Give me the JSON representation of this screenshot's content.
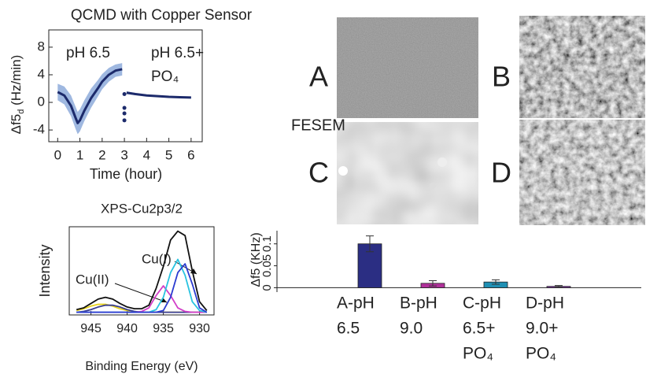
{
  "chart_data": [
    {
      "type": "line",
      "title": "QCMD with Copper Sensor",
      "y_label": [
        "Δf5",
        "d",
        " (Hz/min)"
      ],
      "x_label": "Time (hour)",
      "xlim": [
        -0.4,
        6.5
      ],
      "xticks": [
        0,
        1,
        2,
        3,
        4,
        5,
        6
      ],
      "ylim": [
        -5.7,
        10.5
      ],
      "yticks": [
        -4,
        0,
        4,
        8
      ],
      "annotations": [
        {
          "text": "pH 6.5",
          "color": "#2b2e83"
        },
        {
          "text": "pH 6.5+",
          "color": "#1f8fb3"
        },
        {
          "text": "PO₄",
          "color": "#1f8fb3"
        }
      ],
      "series": [
        {
          "color": "#1c2a6b",
          "band_color": "#9fb8e0",
          "x": [
            0,
            0.3,
            0.6,
            0.8,
            0.9,
            1.0,
            1.2,
            1.5,
            1.8,
            2.0,
            2.3,
            2.6,
            2.9,
            3.0,
            3.1,
            3.5,
            4.0,
            4.5,
            5.0,
            5.5,
            6.0
          ],
          "values": [
            1.5,
            1.0,
            -0.5,
            -2.2,
            -3.0,
            -2.6,
            -1.2,
            0.6,
            2.0,
            3.0,
            4.0,
            4.6,
            4.8,
            null,
            1.4,
            1.2,
            1.0,
            0.9,
            0.8,
            0.75,
            0.7
          ],
          "errors": [
            1.2,
            1.3,
            1.5,
            1.6,
            1.6,
            1.6,
            1.5,
            1.4,
            1.2,
            1.1,
            1.0,
            0.9,
            0.9,
            null,
            0.2,
            0.15,
            0.1,
            0.1,
            0.1,
            0.1,
            0.1
          ]
        },
        {
          "color": "#1c2a6b",
          "marker": true,
          "x": [
            3.0,
            3.0,
            3.0,
            3.0
          ],
          "values": [
            1.2,
            -0.8,
            -1.6,
            -2.6
          ]
        }
      ]
    },
    {
      "type": "line",
      "title": "XPS-Cu2p3/2",
      "y_label": "Intensity",
      "x_label": "Binding Energy (eV)",
      "xlim": [
        948,
        928
      ],
      "xticks": [
        945,
        940,
        935,
        930
      ],
      "ylim": [
        0,
        1
      ],
      "annotations": [
        {
          "text": "Cu(I)"
        },
        {
          "text": "Cu(II)"
        }
      ],
      "x": [
        947,
        946,
        945,
        944,
        943,
        942,
        941,
        940,
        939,
        938,
        937,
        936,
        935,
        934,
        933,
        932,
        931,
        930,
        929
      ],
      "series": [
        {
          "color": "#e8d21a",
          "values": [
            0.05,
            0.07,
            0.1,
            0.12,
            0.12,
            0.1,
            0.07,
            0.05,
            0.04,
            0.03,
            0.03,
            0.03,
            0.03,
            0.03,
            0.03,
            0.03,
            0.03,
            0.03,
            0.03
          ]
        },
        {
          "color": "#3a3d8f",
          "values": [
            0.03,
            0.04,
            0.06,
            0.09,
            0.11,
            0.11,
            0.09,
            0.06,
            0.04,
            0.03,
            0.03,
            0.03,
            0.03,
            0.03,
            0.03,
            0.03,
            0.03,
            0.03,
            0.03
          ]
        },
        {
          "color": "#d23ec8",
          "values": [
            0.03,
            0.03,
            0.03,
            0.03,
            0.03,
            0.03,
            0.03,
            0.03,
            0.03,
            0.04,
            0.08,
            0.22,
            0.33,
            0.22,
            0.08,
            0.04,
            0.03,
            0.03,
            0.03
          ]
        },
        {
          "color": "#29c3e0",
          "values": [
            0.03,
            0.03,
            0.03,
            0.03,
            0.03,
            0.03,
            0.03,
            0.03,
            0.03,
            0.03,
            0.03,
            0.06,
            0.2,
            0.48,
            0.63,
            0.45,
            0.15,
            0.05,
            0.03
          ]
        },
        {
          "color": "#2a3bd0",
          "values": [
            0.03,
            0.03,
            0.03,
            0.03,
            0.03,
            0.03,
            0.03,
            0.03,
            0.03,
            0.03,
            0.03,
            0.03,
            0.05,
            0.2,
            0.48,
            0.58,
            0.35,
            0.08,
            0.03
          ]
        },
        {
          "color": "#111111",
          "values": [
            0.06,
            0.08,
            0.13,
            0.18,
            0.2,
            0.18,
            0.13,
            0.09,
            0.07,
            0.07,
            0.11,
            0.3,
            0.55,
            0.85,
            0.95,
            0.9,
            0.5,
            0.15,
            0.05
          ]
        }
      ]
    },
    {
      "type": "bar",
      "y_label": "Δf5 (KHz)",
      "ylim": [
        -0.01,
        0.13
      ],
      "yticks": [
        0,
        0.05,
        0.1
      ],
      "categories": [
        [
          "A-pH",
          "6.5"
        ],
        [
          "B-pH",
          "9.0"
        ],
        [
          "C-pH",
          "6.5+",
          "PO₄"
        ],
        [
          "D-pH",
          "9.0+",
          "PO₄"
        ]
      ],
      "colors": [
        "#2b2e83",
        "#b0309a",
        "#1f8fb3",
        "#7a2fa0"
      ],
      "values": [
        0.1,
        0.01,
        0.013,
        0.003
      ],
      "errors": [
        0.018,
        0.006,
        0.005,
        0.002
      ]
    }
  ],
  "panels": {
    "label": "FESEM",
    "images": [
      {
        "letter": "A",
        "color": "#2b2e83"
      },
      {
        "letter": "B",
        "color": "#b0309a"
      },
      {
        "letter": "C",
        "color": "#1f8fb3"
      },
      {
        "letter": "D",
        "color": "#7a2fa0"
      }
    ]
  }
}
